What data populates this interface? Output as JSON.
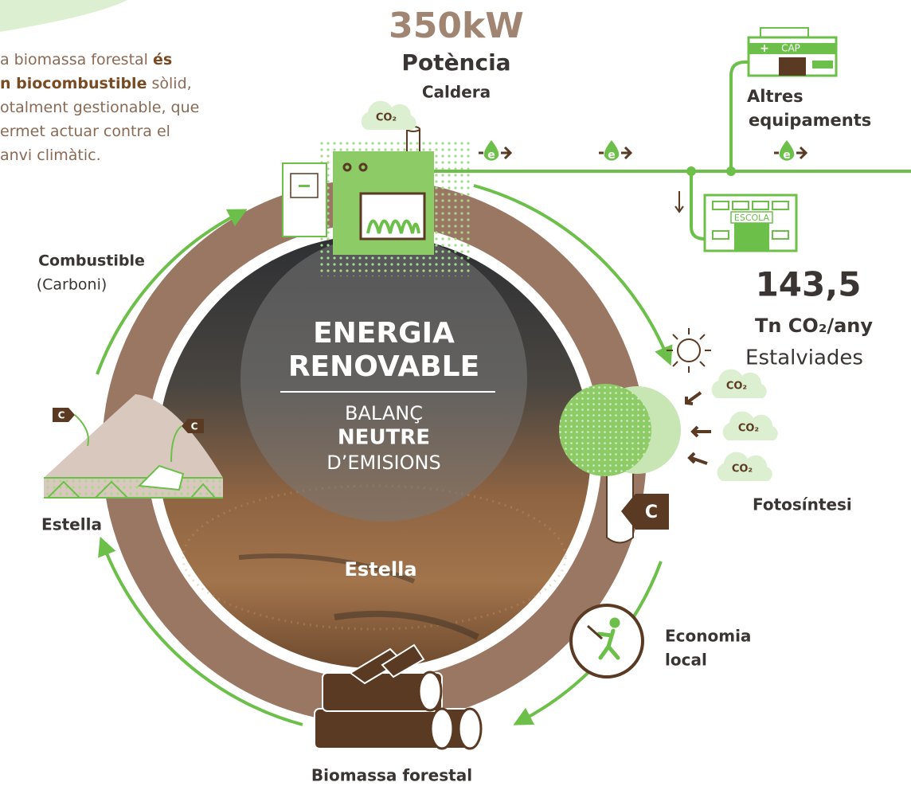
{
  "intro": {
    "lines": [
      [
        {
          "text": "a biomassa forestal ",
          "bold": false
        },
        {
          "text": "és",
          "bold": true
        }
      ],
      [
        {
          "text": "n biocombustible",
          "bold": true
        },
        {
          "text": " sòlid,",
          "bold": false
        }
      ],
      [
        {
          "text": "otalment gestionable, que",
          "bold": false
        }
      ],
      [
        {
          "text": "ermet actuar contra el",
          "bold": false
        }
      ],
      [
        {
          "text": "anvi climàtic.",
          "bold": false
        }
      ]
    ]
  },
  "boiler": {
    "power": "350kW",
    "power_label": "Potència",
    "name": "Caldera"
  },
  "co2_clouds": [
    "CO₂",
    "CO₂",
    "CO₂",
    "CO₂"
  ],
  "energy_icons": [
    "e",
    "e",
    "e"
  ],
  "buildings": {
    "cap": "CAP",
    "cap_label": [
      "Altres",
      "equipaments"
    ],
    "escola": "ESCOLA"
  },
  "savings": {
    "value": "143,5",
    "unit": "Tn CO₂/any",
    "label": "Estalviades"
  },
  "center": {
    "title": [
      "ENERGIA",
      "RENOVABLE"
    ],
    "subtitle": [
      "BALANÇ",
      "NEUTRE",
      "D’EMISIONS"
    ]
  },
  "carbon_tags": [
    "C",
    "C",
    "C"
  ],
  "stages": {
    "combustible": "Combustible",
    "combustible_note": "(Carboni)",
    "estella": "Estella",
    "photo_label": "Estella",
    "fotosintesi": "Fotosíntesi",
    "economia": [
      "Economia",
      "local"
    ],
    "biomassa": "Biomassa forestal"
  }
}
